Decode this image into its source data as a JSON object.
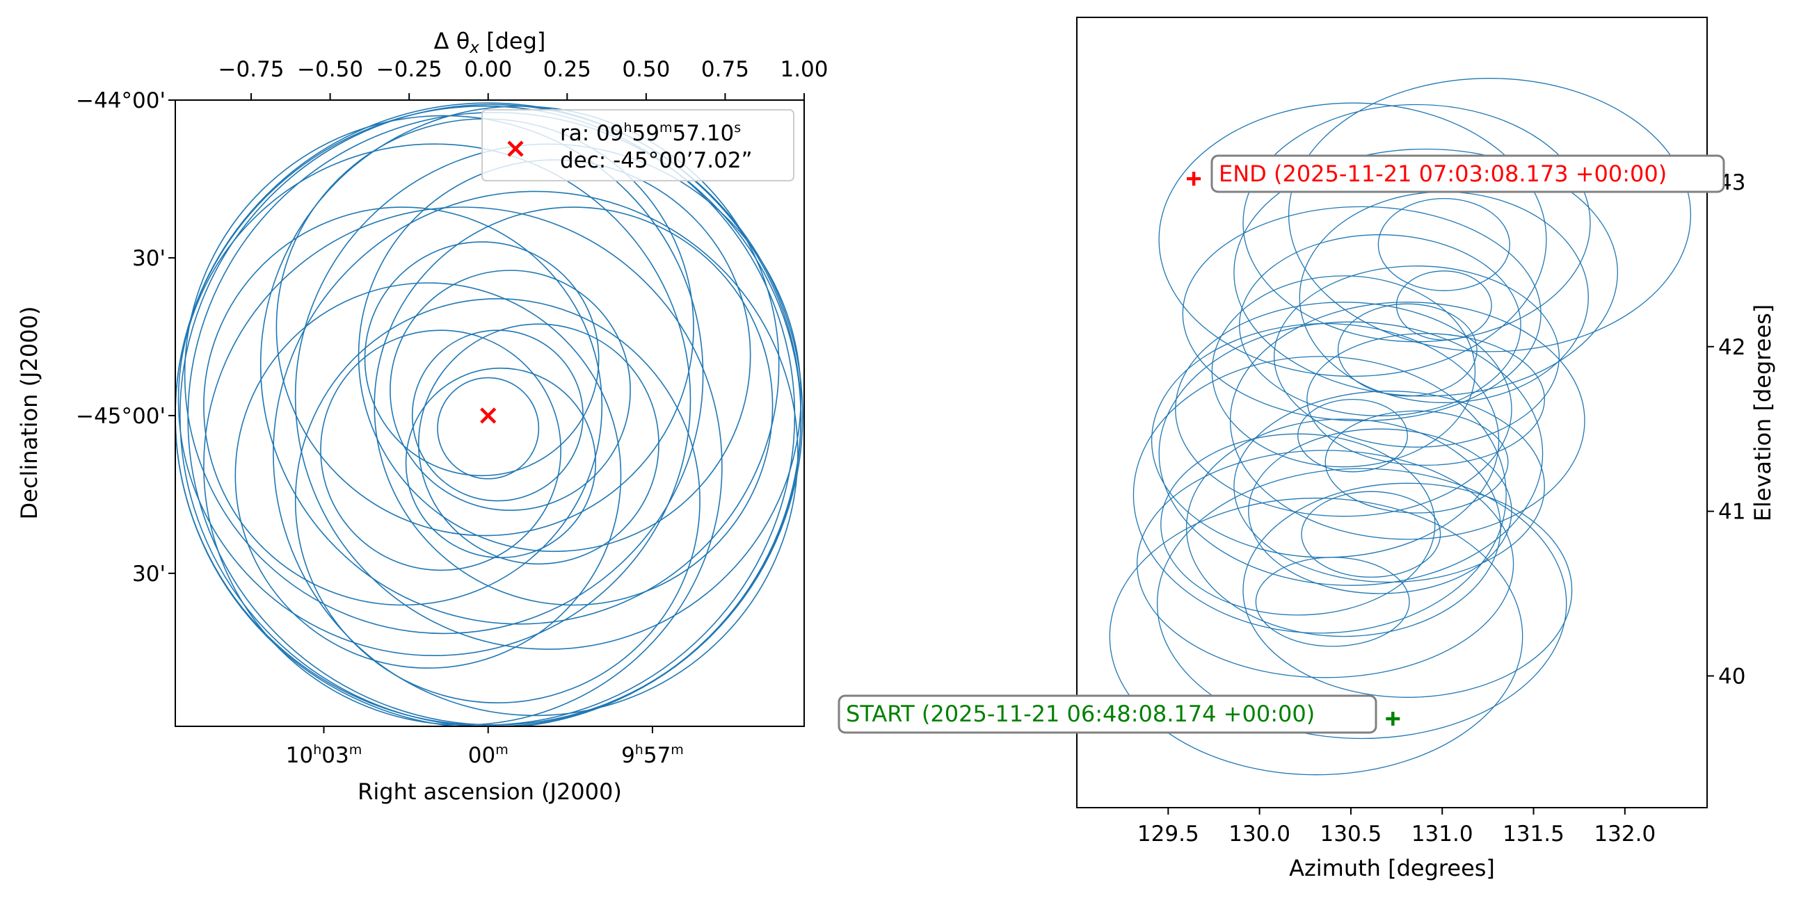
{
  "colors": {
    "scan": "#1f77b4",
    "target": "#ff0000",
    "end": "#ff0000",
    "start": "#008000",
    "axes": "#000000"
  },
  "chart_data": [
    {
      "id": "sky-plot",
      "type": "scatter",
      "description": "Daisy scan pattern projected on the sky around the target",
      "top_axis_label": "Δ θ",
      "top_axis_subscript": "x",
      "top_axis_unit": " [deg]",
      "top_axis_ticks": [
        "−0.75",
        "−0.50",
        "−0.25",
        "0.00",
        "0.25",
        "0.50",
        "0.75",
        "1.00"
      ],
      "top_axis_tick_values": [
        -0.75,
        -0.5,
        -0.25,
        0.0,
        0.25,
        0.5,
        0.75,
        1.0
      ],
      "xlim": [
        -0.99,
        1.0
      ],
      "xlabel": "Right ascension (J2000)",
      "ylabel": "Declination (J2000)",
      "x_ticks": [
        {
          "label": "10",
          "h": "h",
          "m": "03",
          "u": "m",
          "offset_deg": -0.52
        },
        {
          "label": "",
          "h": "",
          "m": "00",
          "u": "m",
          "offset_deg": 0.0
        },
        {
          "label": "9",
          "h": "h",
          "m": "57",
          "u": "m",
          "offset_deg": 0.52
        }
      ],
      "y_ticks": [
        {
          "label": "−44°00'",
          "offset_deg": 1.0
        },
        {
          "label": "30'",
          "offset_deg": 0.5
        },
        {
          "label": "−45°00'",
          "offset_deg": 0.0
        },
        {
          "label": "30'",
          "offset_deg": -0.5
        }
      ],
      "ylim": [
        -0.985,
        1.0
      ],
      "target": {
        "x": 0.0,
        "y": 0.0
      },
      "legend": {
        "ra_label": "ra: 09",
        "ra_h": "h",
        "ra_m": "59",
        "ra_mu": "m",
        "ra_s": "57.10",
        "ra_su": "s",
        "dec_label": "dec: -45°00’7.02”",
        "position": "top-right"
      },
      "circles": [
        {
          "cx": 0.0,
          "cy": 0.0,
          "r": 0.99
        },
        {
          "cx": 0.01,
          "cy": 0.0,
          "r": 0.985
        },
        {
          "cx": 0.02,
          "cy": -0.01,
          "r": 0.97
        },
        {
          "cx": -0.01,
          "cy": 0.0,
          "r": 0.98
        },
        {
          "cx": 0.19,
          "cy": 0.06,
          "r": 0.8
        },
        {
          "cx": -0.17,
          "cy": 0.05,
          "r": 0.81
        },
        {
          "cx": 0.1,
          "cy": 0.16,
          "r": 0.82
        },
        {
          "cx": -0.08,
          "cy": -0.16,
          "r": 0.82
        },
        {
          "cx": 0.15,
          "cy": -0.12,
          "r": 0.83
        },
        {
          "cx": -0.14,
          "cy": 0.13,
          "r": 0.82
        },
        {
          "cx": -0.01,
          "cy": 0.28,
          "r": 0.66
        },
        {
          "cx": 0.27,
          "cy": 0.03,
          "r": 0.63
        },
        {
          "cx": -0.27,
          "cy": 0.03,
          "r": 0.63
        },
        {
          "cx": 0.03,
          "cy": -0.27,
          "r": 0.64
        },
        {
          "cx": 0.21,
          "cy": 0.19,
          "r": 0.62
        },
        {
          "cx": -0.19,
          "cy": -0.19,
          "r": 0.61
        },
        {
          "cx": -0.02,
          "cy": 0.18,
          "r": 0.37
        },
        {
          "cx": 0.16,
          "cy": -0.09,
          "r": 0.38
        },
        {
          "cx": -0.15,
          "cy": -0.11,
          "r": 0.38
        },
        {
          "cx": 0.04,
          "cy": -0.15,
          "r": 0.3
        },
        {
          "cx": 0.07,
          "cy": 0.08,
          "r": 0.38
        },
        {
          "cx": 0.0,
          "cy": -0.04,
          "r": 0.16
        },
        {
          "cx": 0.03,
          "cy": 0.0,
          "r": 0.27
        }
      ]
    },
    {
      "id": "altaz-plot",
      "type": "scatter",
      "description": "Scan pattern in azimuth / elevation over time",
      "xlabel": "Azimuth [degrees]",
      "ylabel": "Elevation [degrees]",
      "x_ticks": [
        "129.5",
        "130.0",
        "130.5",
        "131.0",
        "131.5",
        "132.0"
      ],
      "x_tick_values": [
        129.5,
        130.0,
        130.5,
        131.0,
        131.5,
        132.0
      ],
      "y_ticks": [
        "40",
        "41",
        "42",
        "43"
      ],
      "y_tick_values": [
        40,
        41,
        42,
        43
      ],
      "xlim": [
        129.0,
        132.45
      ],
      "ylim": [
        39.2,
        44.0
      ],
      "y_axis_side": "right",
      "end_point": {
        "az": 129.64,
        "el": 43.02,
        "label": "END (2025-11-21 07:03:08.173 +00:00)"
      },
      "start_point": {
        "az": 130.73,
        "el": 39.74,
        "label": "START (2025-11-21 06:48:08.174 +00:00)"
      },
      "ellipses": [
        {
          "cx": 130.31,
          "cy": 40.24,
          "rx": 1.13,
          "ry": 0.84
        },
        {
          "cx": 130.56,
          "cy": 40.44,
          "rx": 1.12,
          "ry": 0.82
        },
        {
          "cx": 130.36,
          "cy": 40.68,
          "rx": 1.03,
          "ry": 0.69
        },
        {
          "cx": 130.81,
          "cy": 40.52,
          "rx": 0.9,
          "ry": 0.65
        },
        {
          "cx": 130.46,
          "cy": 40.9,
          "rx": 0.86,
          "ry": 0.66
        },
        {
          "cx": 130.21,
          "cy": 40.92,
          "rx": 0.75,
          "ry": 0.55
        },
        {
          "cx": 130.71,
          "cy": 41.15,
          "rx": 0.85,
          "ry": 0.58
        },
        {
          "cx": 130.5,
          "cy": 41.35,
          "rx": 1.05,
          "ry": 0.8
        },
        {
          "cx": 130.81,
          "cy": 41.55,
          "rx": 0.97,
          "ry": 0.72
        },
        {
          "cx": 130.33,
          "cy": 41.1,
          "rx": 1.02,
          "ry": 0.84
        },
        {
          "cx": 130.46,
          "cy": 41.62,
          "rx": 0.92,
          "ry": 0.65
        },
        {
          "cx": 130.4,
          "cy": 40.45,
          "rx": 0.42,
          "ry": 0.27
        },
        {
          "cx": 130.61,
          "cy": 40.86,
          "rx": 0.38,
          "ry": 0.26
        },
        {
          "cx": 130.51,
          "cy": 41.46,
          "rx": 0.3,
          "ry": 0.22
        },
        {
          "cx": 130.66,
          "cy": 41.0,
          "rx": 0.72,
          "ry": 0.5
        },
        {
          "cx": 130.86,
          "cy": 41.3,
          "rx": 0.5,
          "ry": 0.31
        },
        {
          "cx": 130.46,
          "cy": 41.85,
          "rx": 0.72,
          "ry": 0.58
        },
        {
          "cx": 130.86,
          "cy": 41.94,
          "rx": 0.78,
          "ry": 0.55
        },
        {
          "cx": 131.01,
          "cy": 42.3,
          "rx": 0.79,
          "ry": 0.64
        },
        {
          "cx": 130.56,
          "cy": 42.2,
          "rx": 0.98,
          "ry": 0.65
        },
        {
          "cx": 130.91,
          "cy": 42.45,
          "rx": 1.05,
          "ry": 0.75
        },
        {
          "cx": 130.51,
          "cy": 42.65,
          "rx": 1.06,
          "ry": 0.83
        },
        {
          "cx": 131.26,
          "cy": 42.8,
          "rx": 1.1,
          "ry": 0.83
        },
        {
          "cx": 130.86,
          "cy": 42.75,
          "rx": 0.95,
          "ry": 0.72
        },
        {
          "cx": 130.81,
          "cy": 41.98,
          "rx": 0.38,
          "ry": 0.28
        },
        {
          "cx": 131.01,
          "cy": 42.62,
          "rx": 0.36,
          "ry": 0.28
        },
        {
          "cx": 131.01,
          "cy": 42.25,
          "rx": 0.26,
          "ry": 0.21
        },
        {
          "cx": 130.66,
          "cy": 42.13,
          "rx": 0.77,
          "ry": 0.55
        },
        {
          "cx": 130.91,
          "cy": 41.68,
          "rx": 0.65,
          "ry": 0.4
        },
        {
          "cx": 130.36,
          "cy": 41.43,
          "rx": 0.95,
          "ry": 0.71
        }
      ]
    }
  ]
}
